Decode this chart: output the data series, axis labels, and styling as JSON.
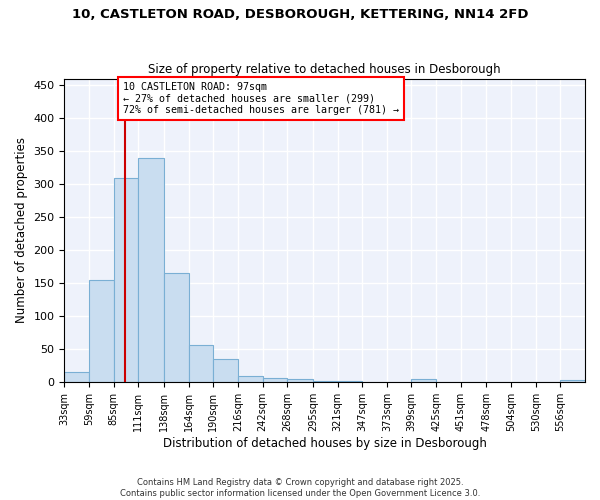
{
  "title_line1": "10, CASTLETON ROAD, DESBOROUGH, KETTERING, NN14 2FD",
  "title_line2": "Size of property relative to detached houses in Desborough",
  "xlabel": "Distribution of detached houses by size in Desborough",
  "ylabel": "Number of detached properties",
  "bar_color": "#c9ddf0",
  "bar_edge_color": "#7aafd4",
  "background_color": "#eef2fb",
  "grid_color": "#ffffff",
  "vline_color": "#cc0000",
  "vline_x": 97,
  "annotation_title": "10 CASTLETON ROAD: 97sqm",
  "annotation_line1": "← 27% of detached houses are smaller (299)",
  "annotation_line2": "72% of semi-detached houses are larger (781) →",
  "bin_edges": [
    33,
    59,
    85,
    111,
    138,
    164,
    190,
    216,
    242,
    268,
    295,
    321,
    347,
    373,
    399,
    425,
    451,
    478,
    504,
    530,
    556,
    582
  ],
  "bin_counts": [
    15,
    155,
    310,
    340,
    165,
    57,
    35,
    10,
    7,
    5,
    2,
    2,
    0,
    0,
    5,
    0,
    0,
    0,
    0,
    0,
    3
  ],
  "ylim": [
    0,
    460
  ],
  "yticks": [
    0,
    50,
    100,
    150,
    200,
    250,
    300,
    350,
    400,
    450
  ]
}
